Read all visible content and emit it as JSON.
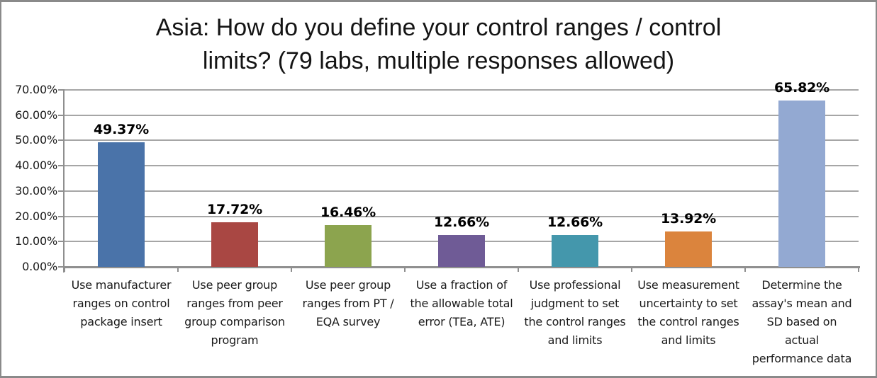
{
  "frame": {
    "background": "#ffffff",
    "border_color": "#8a8a8a"
  },
  "chart_data": {
    "type": "bar",
    "title": "Asia: How do you define your control ranges / control limits? (79 labs, multiple responses allowed)",
    "title_lines": [
      "Asia: How do you define your control ranges / control",
      "limits? (79 labs, multiple responses allowed)"
    ],
    "categories": [
      "Use manufacturer ranges on control package insert",
      "Use peer group ranges from peer group comparison program",
      "Use peer group ranges from PT / EQA survey",
      "Use a fraction of the allowable total error (TEa, ATE)",
      "Use professional judgment to set the control ranges and limits",
      "Use measurement uncertainty to set the control ranges and limits",
      "Determine the assay's mean and SD based on actual performance data"
    ],
    "category_lines": [
      [
        "Use manufacturer",
        "ranges on control",
        "package insert"
      ],
      [
        "Use peer group",
        "ranges from peer",
        "group comparison",
        "program"
      ],
      [
        "Use peer group",
        "ranges from PT /",
        "EQA survey"
      ],
      [
        "Use a fraction of",
        "the allowable total",
        "error (TEa, ATE)"
      ],
      [
        "Use professional",
        "judgment to set",
        "the control ranges",
        "and limits"
      ],
      [
        "Use measurement",
        "uncertainty to set",
        "the control ranges",
        "and limits"
      ],
      [
        "Determine the",
        "assay's mean and",
        "SD based on",
        "actual",
        "performance data"
      ]
    ],
    "values": [
      49.37,
      17.72,
      16.46,
      12.66,
      12.66,
      13.92,
      65.82
    ],
    "value_labels": [
      "49.37%",
      "17.72%",
      "16.46%",
      "12.66%",
      "12.66%",
      "13.92%",
      "65.82%"
    ],
    "bar_colors": [
      "#4A73A9",
      "#A94743",
      "#8CA44E",
      "#6F5B96",
      "#4497AC",
      "#DB843D",
      "#93A9D2"
    ],
    "ylim": [
      0,
      70
    ],
    "ytick_step": 10,
    "ytick_labels": [
      "0.00%",
      "10.00%",
      "20.00%",
      "30.00%",
      "40.00%",
      "50.00%",
      "60.00%",
      "70.00%"
    ],
    "grid": true,
    "legend": "none",
    "xlabel": "",
    "ylabel": "",
    "axis_color": "#8f8f8f",
    "gridline_color": "#a6a6a6",
    "text_color": "#1a1a1a"
  }
}
